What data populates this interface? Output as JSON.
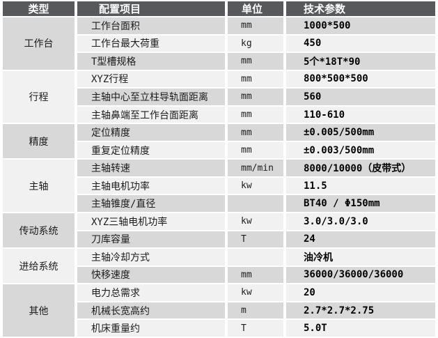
{
  "table": {
    "headers": {
      "type": "类型",
      "item": "配置项目",
      "unit": "单位",
      "value": "技术参数"
    },
    "rows": [
      {
        "group": "工作台",
        "item": "工作台面积",
        "unit": "mm",
        "value": "1000*500"
      },
      {
        "item": "工作台最大荷重",
        "unit": "kg",
        "value": "450"
      },
      {
        "item": "T型槽规格",
        "unit": "mm",
        "value": "5个*18T*90"
      },
      {
        "group": "行程",
        "item": "XYZ行程",
        "unit": "mm",
        "value": "800*500*500"
      },
      {
        "item": "主轴中心至立柱导轨面距离",
        "unit": "mm",
        "value": "560"
      },
      {
        "item": "主轴鼻端至工作台面距离",
        "unit": "mm",
        "value": "110-610"
      },
      {
        "group": "精度",
        "item": "定位精度",
        "unit": "mm",
        "value": "±0.005/500mm"
      },
      {
        "item": "重复定位精度",
        "unit": "mm",
        "value": "±0.003/500mm"
      },
      {
        "group": "主轴",
        "item": "主轴转速",
        "unit": "mm/min",
        "value": "8000/10000（皮带式）"
      },
      {
        "item": "主轴电机功率",
        "unit": "kw",
        "value": "11.5"
      },
      {
        "item": "主轴锥度/直径",
        "unit": "",
        "value": "BT40 / Φ150mm"
      },
      {
        "group": "传动系统",
        "item": "XYZ三轴电机功率",
        "unit": "kw",
        "value": "3.0/3.0/3.0"
      },
      {
        "item": "刀库容量",
        "unit": "T",
        "value": "24"
      },
      {
        "group": "进给系统",
        "item": "主轴冷却方式",
        "unit": "",
        "value": "油冷机"
      },
      {
        "item": "快移速度",
        "unit": "mm",
        "value": "36000/36000/36000"
      },
      {
        "group": "其他",
        "item": "电力总需求",
        "unit": "kw",
        "value": "20"
      },
      {
        "item": "机械长宽高约",
        "unit": "m",
        "value": "2.7*2.7*2.75"
      },
      {
        "item": "机床重量约",
        "unit": "T",
        "value": "5.0T"
      }
    ],
    "colors": {
      "header_bg": "#58595b",
      "header_text": "#fdfdfd",
      "row_gray": "#d8d8d8",
      "row_light": "#f1f1f1",
      "separator": "#ffffff",
      "body_text": "#1c1c1c"
    }
  }
}
